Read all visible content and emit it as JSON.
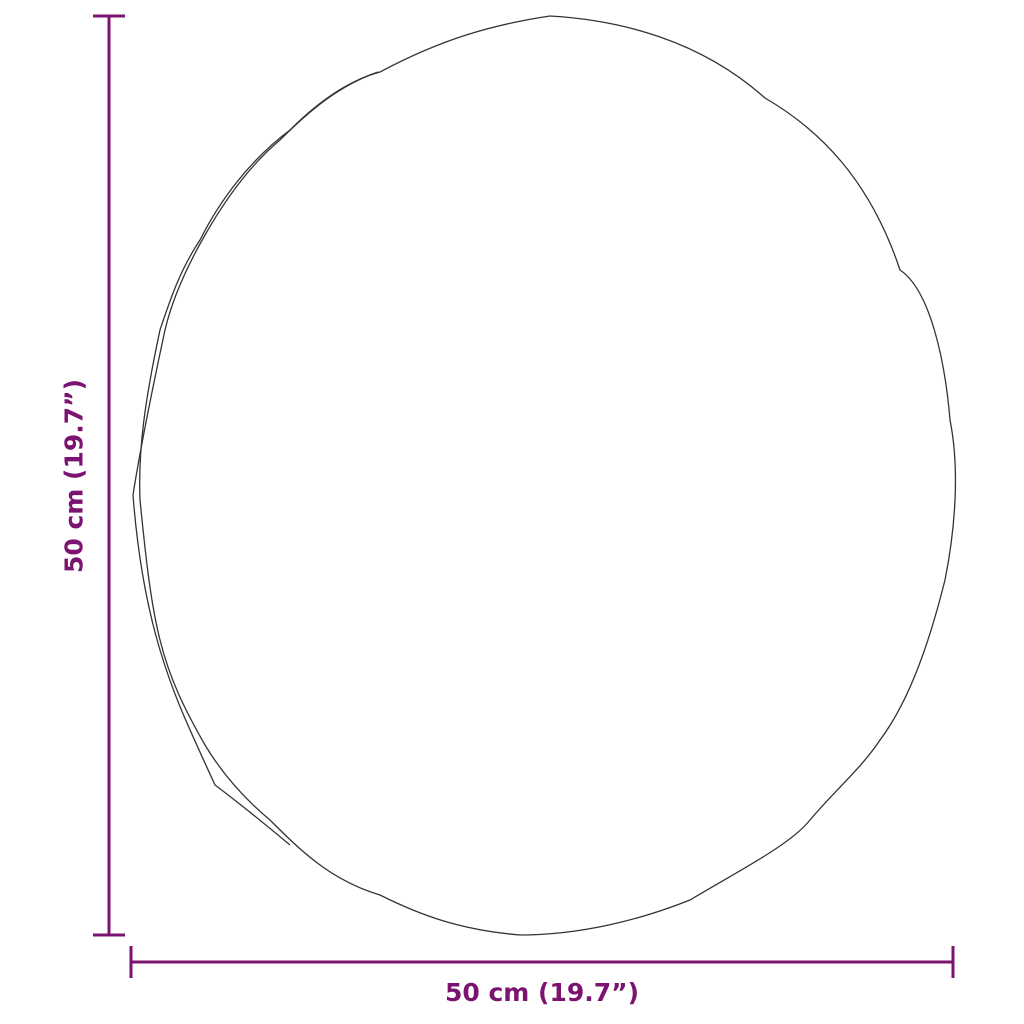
{
  "dimensions": {
    "width_label": "50 cm (19.7”)",
    "height_label": "50 cm (19.7”)"
  },
  "colors": {
    "dimension": "#7b1470",
    "outline": "#333333"
  },
  "object": {
    "shape": "round-mirror-outline"
  }
}
